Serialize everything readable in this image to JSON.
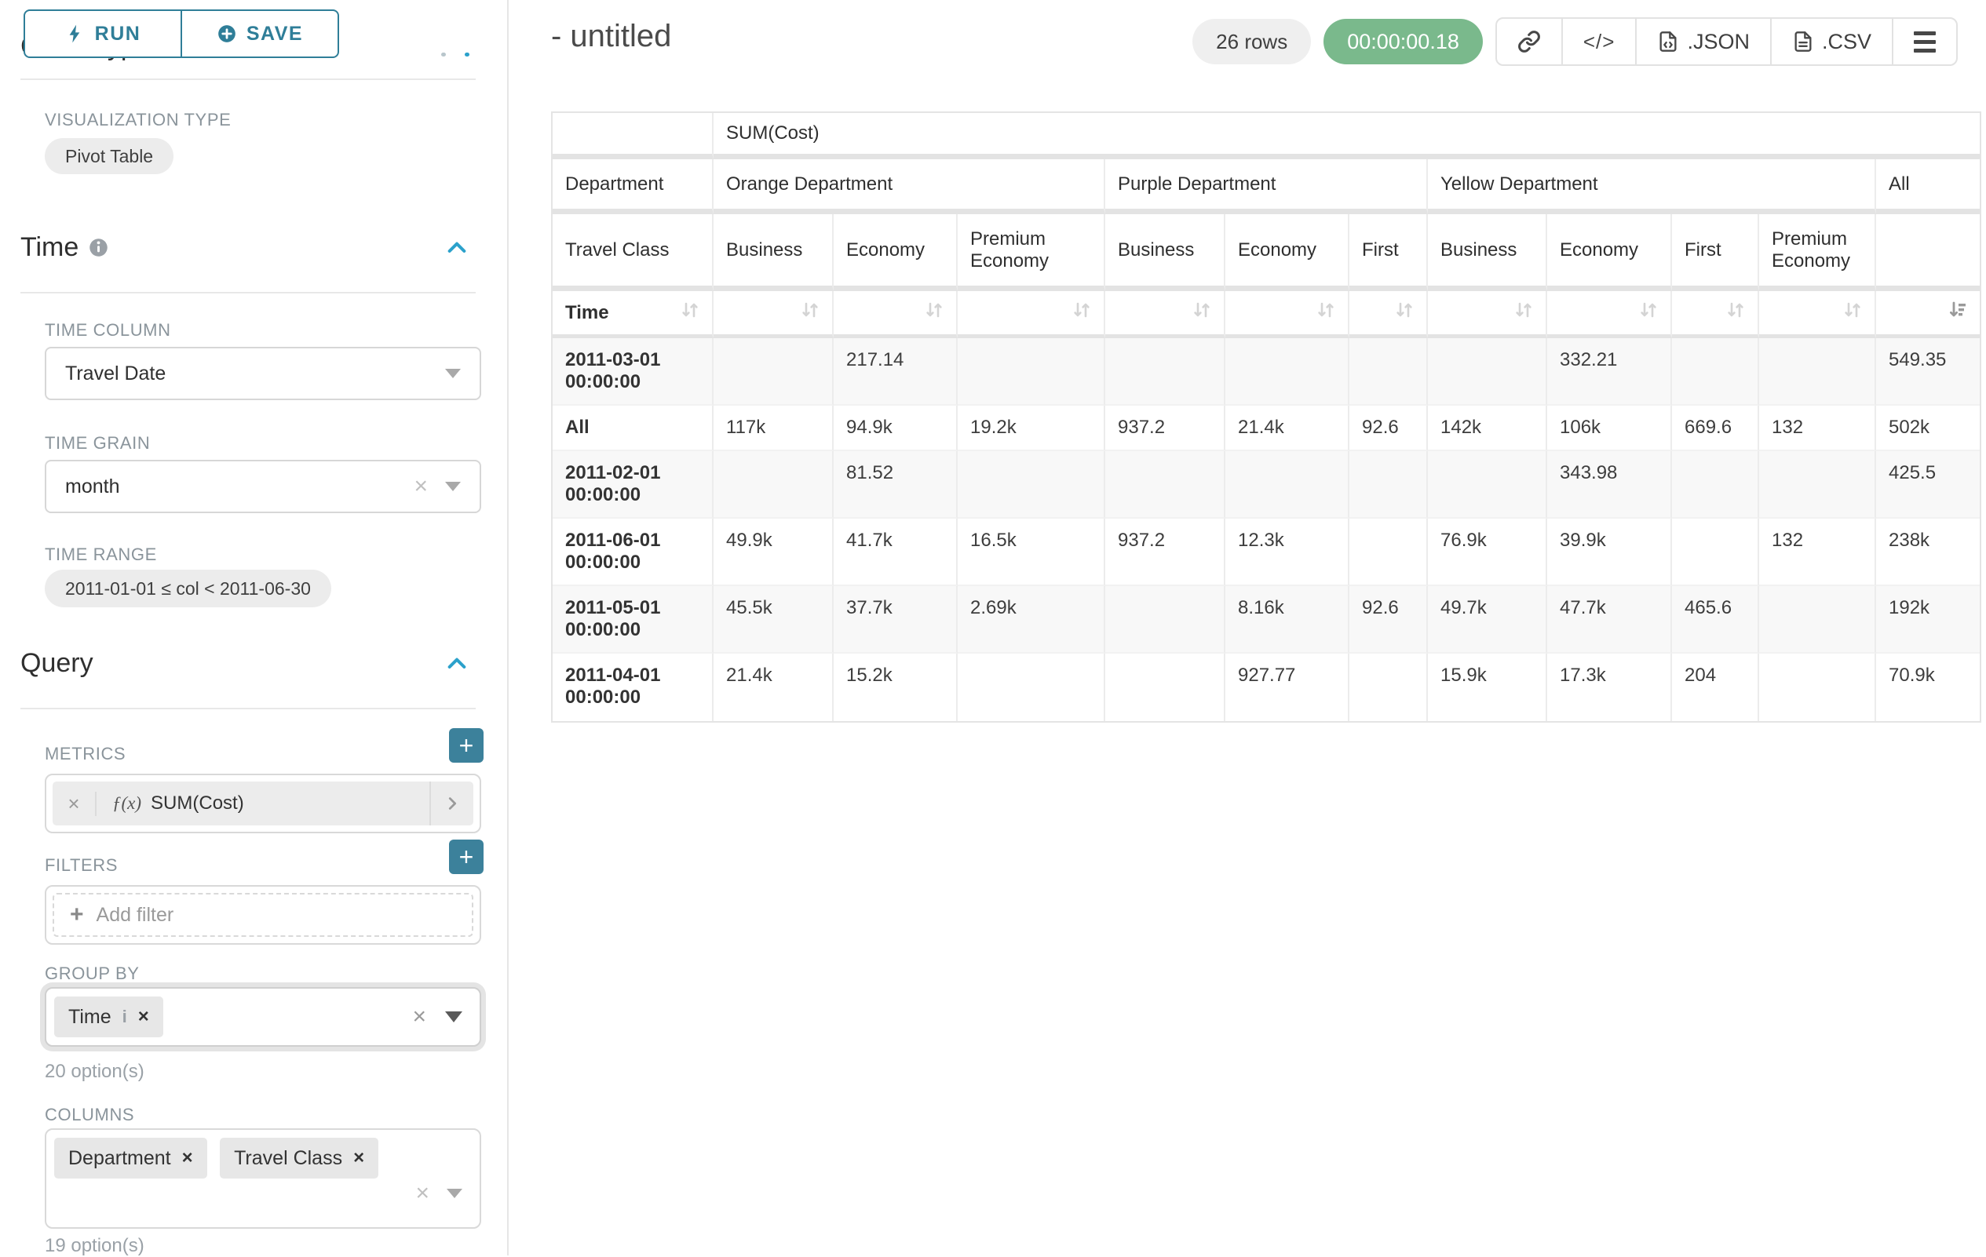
{
  "colors": {
    "accent_teal": "#2f7e98",
    "plus_button_teal": "#3c819b",
    "section_chevron_blue": "#2ba1cb",
    "timer_green": "#7ab98c",
    "badge_gray": "#efefef",
    "stripe_gray": "#f8f8f8"
  },
  "left_panel": {
    "run_label": "RUN",
    "save_label": "SAVE",
    "chart_type_title": "Chart Type",
    "viz_type_label": "VISUALIZATION TYPE",
    "viz_type_value": "Pivot Table",
    "time": {
      "title": "Time",
      "time_column_label": "TIME COLUMN",
      "time_column_value": "Travel Date",
      "time_grain_label": "TIME GRAIN",
      "time_grain_value": "month",
      "time_range_label": "TIME RANGE",
      "time_range_value": "2011-01-01 ≤ col < 2011-06-30"
    },
    "query": {
      "title": "Query",
      "metrics_label": "METRICS",
      "metric_fx": "ƒ(x)",
      "metric_value": "SUM(Cost)",
      "filters_label": "FILTERS",
      "add_filter_label": "Add filter",
      "group_by_label": "GROUP BY",
      "group_by_tags": [
        "Time"
      ],
      "group_by_options": "20 option(s)",
      "columns_label": "COLUMNS",
      "columns_tags": [
        "Department",
        "Travel Class"
      ],
      "columns_options": "19 option(s)"
    }
  },
  "header": {
    "title": "- untitled",
    "rows_badge": "26 rows",
    "timer": "00:00:00.18",
    "code_icon_text": "</>",
    "json_label": ".JSON",
    "csv_label": ".CSV"
  },
  "chart_data": {
    "type": "table",
    "metric_label": "SUM(Cost)",
    "row_dim_labels": [
      "Department",
      "Travel Class",
      "Time"
    ],
    "col_groups": [
      {
        "label": "Orange Department",
        "children": [
          "Business",
          "Economy",
          "Premium Economy"
        ]
      },
      {
        "label": "Purple Department",
        "children": [
          "Business",
          "Economy",
          "First"
        ]
      },
      {
        "label": "Yellow Department",
        "children": [
          "Business",
          "Economy",
          "First",
          "Premium Economy"
        ]
      },
      {
        "label": "All",
        "children": [
          ""
        ]
      }
    ],
    "rows": [
      {
        "label": "2011-03-01 00:00:00",
        "values": [
          "",
          "217.14",
          "",
          "",
          "",
          "",
          "",
          "332.21",
          "",
          "",
          "549.35"
        ]
      },
      {
        "label": "All",
        "values": [
          "117k",
          "94.9k",
          "19.2k",
          "937.2",
          "21.4k",
          "92.6",
          "142k",
          "106k",
          "669.6",
          "132",
          "502k"
        ]
      },
      {
        "label": "2011-02-01 00:00:00",
        "values": [
          "",
          "81.52",
          "",
          "",
          "",
          "",
          "",
          "343.98",
          "",
          "",
          "425.5"
        ]
      },
      {
        "label": "2011-06-01 00:00:00",
        "values": [
          "49.9k",
          "41.7k",
          "16.5k",
          "937.2",
          "12.3k",
          "",
          "76.9k",
          "39.9k",
          "",
          "132",
          "238k"
        ]
      },
      {
        "label": "2011-05-01 00:00:00",
        "values": [
          "45.5k",
          "37.7k",
          "2.69k",
          "",
          "8.16k",
          "92.6",
          "49.7k",
          "47.7k",
          "465.6",
          "",
          "192k"
        ]
      },
      {
        "label": "2011-04-01 00:00:00",
        "values": [
          "21.4k",
          "15.2k",
          "",
          "",
          "927.77",
          "",
          "15.9k",
          "17.3k",
          "204",
          "",
          "70.9k"
        ]
      }
    ],
    "sort": {
      "column": "All",
      "direction": "descending"
    }
  }
}
